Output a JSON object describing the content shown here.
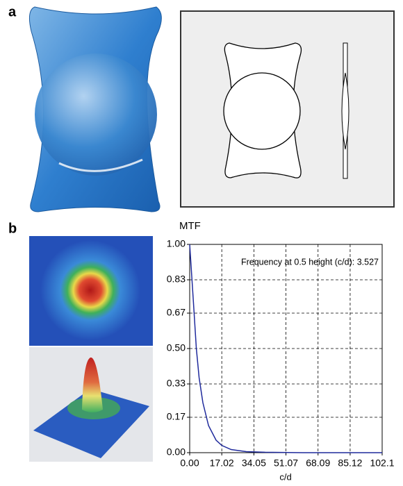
{
  "panels": [
    "a",
    "b"
  ],
  "chart_data": {
    "type": "line",
    "ylabel": "MTF",
    "xlabel": "c/d",
    "annotation": "Frequency at 0.5 height (c/d): 3.527",
    "x": [
      0,
      1,
      2,
      3.527,
      5,
      7,
      10,
      14,
      17,
      22,
      30,
      40,
      60,
      102.1
    ],
    "series": [
      {
        "name": "MTF",
        "color": "#1f2a9c",
        "values": [
          1,
          0.86,
          0.72,
          0.5,
          0.36,
          0.24,
          0.13,
          0.06,
          0.035,
          0.015,
          0.005,
          0.002,
          0,
          0
        ]
      }
    ],
    "xlim": [
      0,
      102.1
    ],
    "ylim": [
      0,
      1
    ],
    "xticks": [
      {
        "value": 0,
        "label": "0.00"
      },
      17.02,
      34.05,
      51.07,
      68.09,
      85.12,
      102.1
    ],
    "yticks": [
      {
        "value": 0,
        "label": "0.00"
      },
      0.17,
      0.33,
      {
        "value": 0.5,
        "label": "0.50"
      },
      0.67,
      0.83,
      {
        "value": 1,
        "label": "1.00"
      }
    ],
    "grid": true
  }
}
